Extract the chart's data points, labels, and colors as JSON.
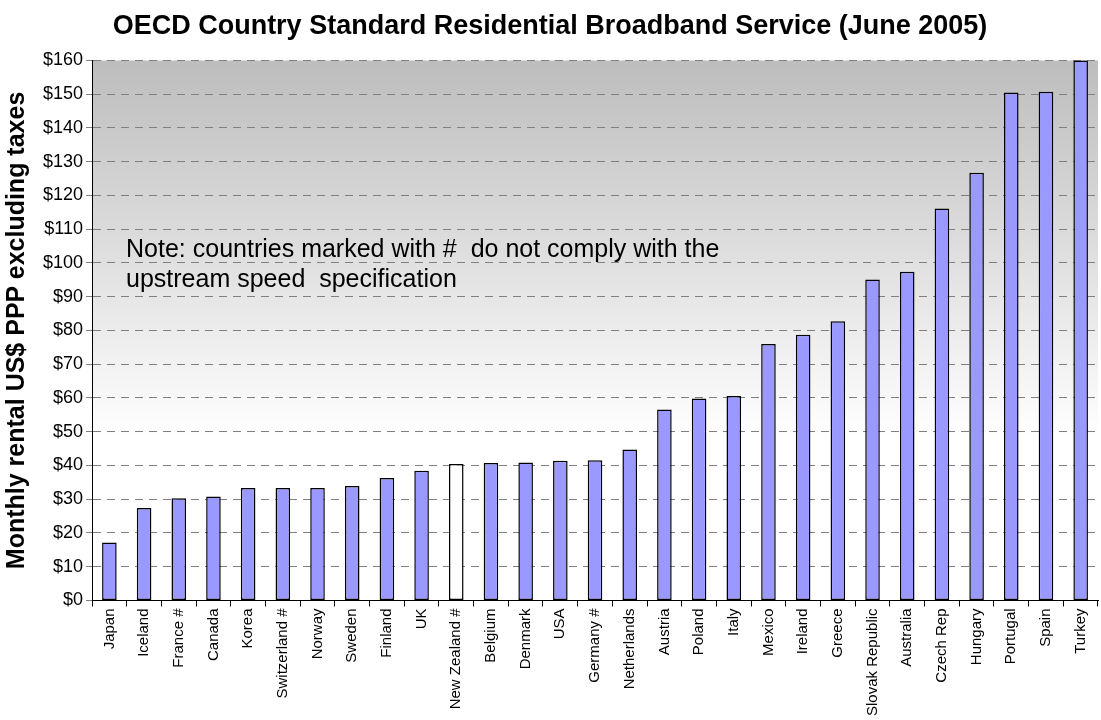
{
  "chart_data": {
    "type": "bar",
    "title": "OECD Country Standard Residential Broadband Service (June 2005)",
    "ylabel": "Monthly rental US$ PPP excluding taxes",
    "categories": [
      "Japan",
      "Iceland",
      "France #",
      "Canada",
      "Korea",
      "Switzerland #",
      "Norway",
      "Sweden",
      "Finland",
      "UK",
      "New Zealand #",
      "Belgium",
      "Denmark",
      "USA",
      "Germany #",
      "Netherlands",
      "Austria",
      "Poland",
      "Italy",
      "Mexico",
      "Ireland",
      "Greece",
      "Slovak Republic",
      "Australia",
      "Czech Rep",
      "Hungary",
      "Portugal",
      "Spain",
      "Turkey"
    ],
    "values": [
      17.2,
      27.4,
      30.3,
      30.8,
      33.3,
      33.3,
      33.3,
      33.9,
      36.3,
      38.4,
      40.4,
      40.7,
      40.9,
      41.4,
      41.5,
      44.7,
      56.6,
      59.8,
      60.6,
      76.0,
      78.7,
      82.7,
      95.1,
      97.4,
      116.1,
      126.7,
      150.5,
      150.7,
      160
    ],
    "colors": [
      "#9999ff",
      "#9999ff",
      "#9999ff",
      "#9999ff",
      "#9999ff",
      "#9999ff",
      "#9999ff",
      "#9999ff",
      "#9999ff",
      "#9999ff",
      "#ffffff",
      "#9999ff",
      "#9999ff",
      "#9999ff",
      "#9999ff",
      "#9999ff",
      "#9999ff",
      "#9999ff",
      "#9999ff",
      "#9999ff",
      "#9999ff",
      "#9999ff",
      "#9999ff",
      "#9999ff",
      "#9999ff",
      "#9999ff",
      "#9999ff",
      "#9999ff",
      "#9999ff"
    ],
    "ylim": [
      0,
      160
    ],
    "yticks": [
      {
        "value": 0,
        "label": "$0"
      },
      {
        "value": 10,
        "label": "$10"
      },
      {
        "value": 20,
        "label": "$20"
      },
      {
        "value": 30,
        "label": "$30"
      },
      {
        "value": 40,
        "label": "$40"
      },
      {
        "value": 50,
        "label": "$50"
      },
      {
        "value": 60,
        "label": "$60"
      },
      {
        "value": 70,
        "label": "$70"
      },
      {
        "value": 80,
        "label": "$80"
      },
      {
        "value": 90,
        "label": "$90"
      },
      {
        "value": 100,
        "label": "$100"
      },
      {
        "value": 110,
        "label": "$110"
      },
      {
        "value": 120,
        "label": "$120"
      },
      {
        "value": 130,
        "label": "$130"
      },
      {
        "value": 140,
        "label": "$140"
      },
      {
        "value": 150,
        "label": "$150"
      },
      {
        "value": 160,
        "label": "$160"
      }
    ],
    "grid": "y",
    "annotations": [
      "Note: countries marked with #  do not comply with the upstream speed  specification"
    ]
  }
}
